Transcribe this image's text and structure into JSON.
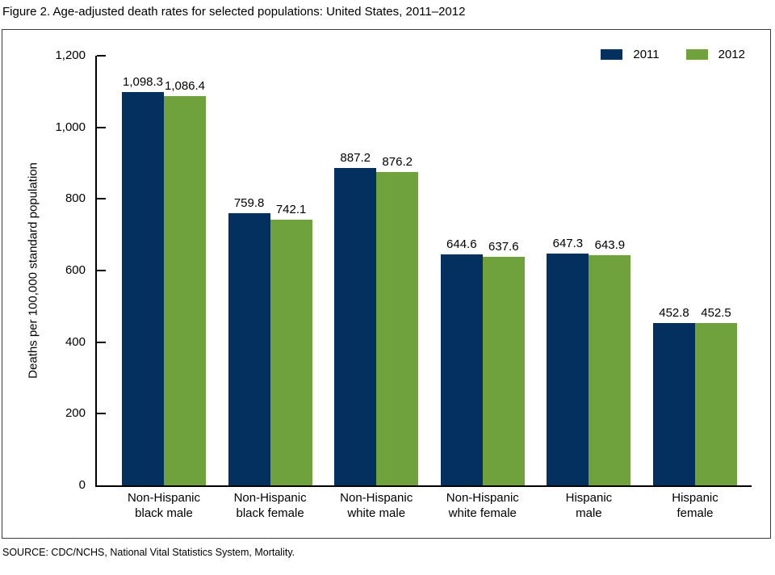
{
  "page": {
    "title": "Figure 2. Age-adjusted death rates for selected populations: United States, 2011–2012",
    "source": "SOURCE: CDC/NCHS, National Vital Statistics System, Mortality."
  },
  "chart_data": {
    "type": "bar",
    "title": "Figure 2. Age-adjusted death rates for selected populations: United States, 2011–2012",
    "xlabel": "",
    "ylabel": "Deaths per 100,000 standard population",
    "ylim": [
      0,
      1200
    ],
    "grid": false,
    "legend_position": "top-right",
    "ytick_values": [
      0,
      200,
      400,
      600,
      800,
      1000,
      1200
    ],
    "ytick_labels": [
      "0",
      "200",
      "400",
      "600",
      "800",
      "1,000",
      "1,200"
    ],
    "categories": [
      "Non-Hispanic black male",
      "Non-Hispanic black female",
      "Non-Hispanic white male",
      "Non-Hispanic white female",
      "Hispanic male",
      "Hispanic female"
    ],
    "series": [
      {
        "name": "2011",
        "color": "#03305e",
        "values": [
          1098.3,
          759.8,
          887.2,
          644.6,
          647.3,
          452.8
        ],
        "value_labels": [
          "1,098.3",
          "759.8",
          "887.2",
          "644.6",
          "647.3",
          "452.8"
        ]
      },
      {
        "name": "2012",
        "color": "#6fa23c",
        "values": [
          1086.4,
          742.1,
          876.2,
          637.6,
          643.9,
          452.5
        ],
        "value_labels": [
          "1,086.4",
          "742.1",
          "876.2",
          "637.6",
          "643.9",
          "452.5"
        ]
      }
    ]
  }
}
